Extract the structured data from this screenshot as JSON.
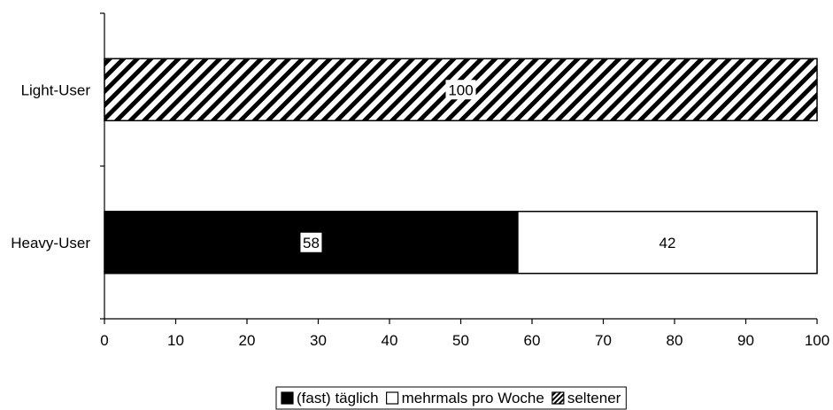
{
  "chart_data": {
    "type": "bar",
    "orientation": "horizontal",
    "stacked": true,
    "categories": [
      "Light-User",
      "Heavy-User"
    ],
    "series": [
      {
        "name": "(fast) täglich",
        "values": [
          0,
          58
        ],
        "fill": "solid-black"
      },
      {
        "name": "mehrmals pro Woche",
        "values": [
          0,
          42
        ],
        "fill": "white"
      },
      {
        "name": "seltener",
        "values": [
          100,
          0
        ],
        "fill": "diagonal-hatch"
      }
    ],
    "xlim": [
      0,
      100
    ],
    "xticks": [
      0,
      10,
      20,
      30,
      40,
      50,
      60,
      70,
      80,
      90,
      100
    ],
    "title": "",
    "xlabel": "",
    "ylabel": "",
    "grid": false,
    "legend_position": "bottom"
  }
}
